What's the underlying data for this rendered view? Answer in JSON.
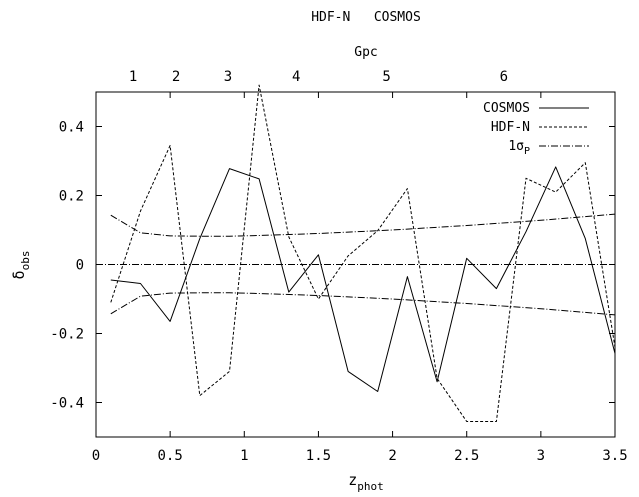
{
  "chart_data": {
    "type": "line",
    "title": "HDF-N   COSMOS",
    "x2label": "Gpc",
    "xlabel": {
      "main": "z",
      "sub": "phot"
    },
    "ylabel": {
      "main": "δ",
      "sub": "obs"
    },
    "xlim": [
      0,
      3.5
    ],
    "ylim": [
      -0.5,
      0.5
    ],
    "xticks": [
      0,
      0.5,
      1,
      1.5,
      2,
      2.5,
      3,
      3.5
    ],
    "xtick_labels": [
      "0",
      "0.5",
      "1",
      "1.5",
      "2",
      "2.5",
      "3",
      "3.5"
    ],
    "yticks": [
      -0.4,
      -0.2,
      0,
      0.2,
      0.4
    ],
    "ytick_labels": [
      "-0.4",
      "-0.2",
      "0",
      "0.2",
      "0.4"
    ],
    "x2ticks": [
      {
        "label": "1",
        "z": 0.25
      },
      {
        "label": "2",
        "z": 0.54
      },
      {
        "label": "3",
        "z": 0.89
      },
      {
        "label": "4",
        "z": 1.35
      },
      {
        "label": "5",
        "z": 1.96
      },
      {
        "label": "6",
        "z": 2.75
      }
    ],
    "zero_line": true,
    "legend_position": "top-right",
    "series": [
      {
        "name": "COSMOS",
        "style": "solid",
        "x": [
          0.1,
          0.3,
          0.5,
          0.7,
          0.9,
          1.1,
          1.3,
          1.5,
          1.7,
          1.9,
          2.1,
          2.3,
          2.5,
          2.7,
          2.9,
          3.1,
          3.3,
          3.5
        ],
        "y": [
          -0.045,
          -0.055,
          -0.165,
          0.075,
          0.278,
          0.248,
          -0.08,
          0.028,
          -0.31,
          -0.368,
          -0.035,
          -0.34,
          0.018,
          -0.07,
          0.095,
          0.283,
          0.075,
          -0.258
        ]
      },
      {
        "name": "HDF-N",
        "style": "dashed",
        "x": [
          0.1,
          0.3,
          0.5,
          0.7,
          0.9,
          1.1,
          1.3,
          1.5,
          1.7,
          1.9,
          2.1,
          2.3,
          2.5,
          2.7,
          2.9,
          3.1,
          3.3,
          3.5
        ],
        "y": [
          -0.11,
          0.155,
          0.345,
          -0.38,
          -0.31,
          0.52,
          0.08,
          -0.1,
          0.025,
          0.098,
          0.22,
          -0.33,
          -0.455,
          -0.455,
          0.25,
          0.21,
          0.295,
          -0.24
        ]
      },
      {
        "name": "1σ",
        "name_sub": "P",
        "style": "dashdot",
        "band": true,
        "x": [
          0.1,
          0.3,
          0.5,
          0.7,
          0.9,
          1.1,
          1.5,
          2.0,
          2.5,
          3.0,
          3.5
        ],
        "y": [
          0.143,
          0.092,
          0.083,
          0.082,
          0.082,
          0.084,
          0.09,
          0.1,
          0.113,
          0.128,
          0.146
        ]
      }
    ]
  }
}
